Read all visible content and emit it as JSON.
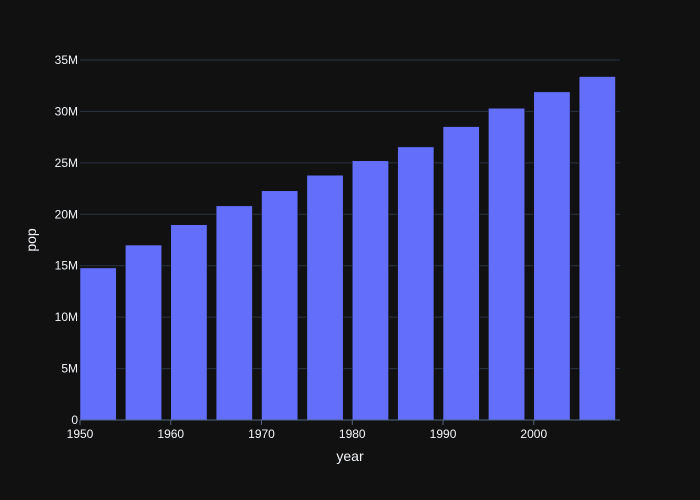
{
  "colors": {
    "background": "#111111",
    "bar": "#636efa",
    "grid": "#283442",
    "text": "#f2f5fa"
  },
  "chart_data": {
    "type": "bar",
    "xlabel": "year",
    "ylabel": "pop",
    "x": [
      1952,
      1957,
      1962,
      1967,
      1972,
      1977,
      1982,
      1987,
      1992,
      1997,
      2002,
      2007
    ],
    "values": [
      14785584,
      17010154,
      18985849,
      20819767,
      22284500,
      23796400,
      25201900,
      26549700,
      28523502,
      30305843,
      31902268,
      33390141
    ],
    "xlim": [
      1950,
      2009.5
    ],
    "ylim": [
      0,
      35000000
    ],
    "x_ticks": [
      {
        "value": 1950,
        "label": "1950"
      },
      {
        "value": 1960,
        "label": "1960"
      },
      {
        "value": 1970,
        "label": "1970"
      },
      {
        "value": 1980,
        "label": "1980"
      },
      {
        "value": 1990,
        "label": "1990"
      },
      {
        "value": 2000,
        "label": "2000"
      }
    ],
    "y_ticks": [
      {
        "value": 0,
        "label": "0"
      },
      {
        "value": 5000000,
        "label": "5M"
      },
      {
        "value": 10000000,
        "label": "10M"
      },
      {
        "value": 15000000,
        "label": "15M"
      },
      {
        "value": 20000000,
        "label": "20M"
      },
      {
        "value": 25000000,
        "label": "25M"
      },
      {
        "value": 30000000,
        "label": "30M"
      },
      {
        "value": 35000000,
        "label": "35M"
      }
    ],
    "bar_width_years": 4,
    "grid": true
  }
}
